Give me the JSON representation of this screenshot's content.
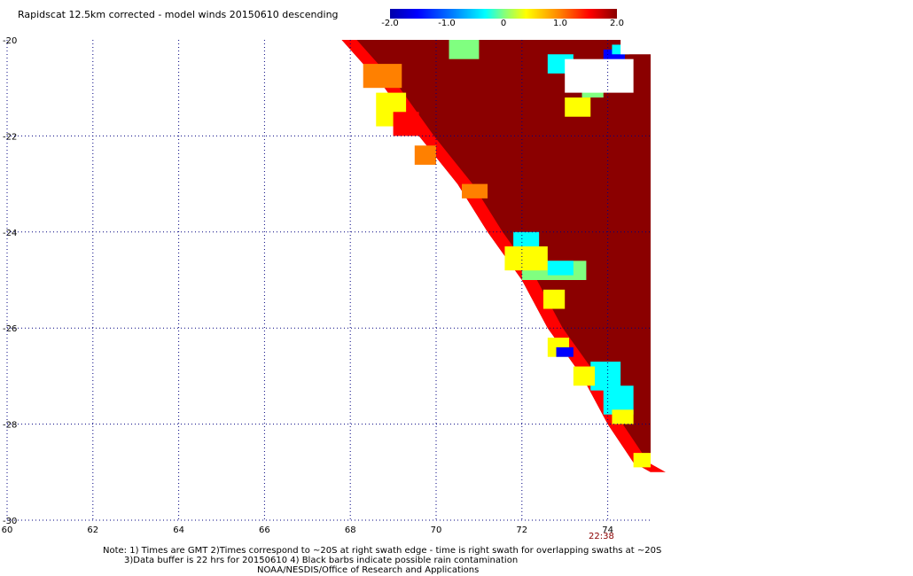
{
  "title": "Rapidscat 12.5km corrected - model winds 20150610 descending",
  "colorbar": {
    "ticks": [
      "-2.0",
      "-1.0",
      "0",
      "1.0",
      "2.0"
    ]
  },
  "time_label": "22:38",
  "notes": {
    "line1": "Note: 1) Times are GMT 2)Times correspond to ~20S at right swath edge - time is right swath for overlapping swaths at ~20S",
    "line2": "3)Data buffer is 22 hrs for 20150610 4) Black barbs indicate possible rain contamination",
    "line3": "NOAA/NESDIS/Office of Research and Applications"
  },
  "colors": {
    "darkred": "#8b0000",
    "red": "#ff0000",
    "orange": "#ff8000",
    "yellow": "#ffff00",
    "lightgreen": "#80ff80",
    "cyan": "#00ffff",
    "blue": "#0000ff"
  },
  "chart_data": {
    "type": "heatmap",
    "xlim": [
      60,
      75
    ],
    "ylim": [
      -30,
      -20
    ],
    "x_ticks": [
      "60",
      "62",
      "64",
      "66",
      "68",
      "70",
      "72",
      "74"
    ],
    "y_ticks": [
      "-20",
      "-22",
      "-24",
      "-26",
      "-28",
      "-30"
    ],
    "grid": true,
    "colorbar_range": [
      -2.0,
      2.0
    ],
    "swath_edge": [
      [
        67.8,
        -20
      ],
      [
        68.8,
        -21
      ],
      [
        69.6,
        -22
      ],
      [
        70.5,
        -23
      ],
      [
        71.2,
        -24
      ],
      [
        72.0,
        -25
      ],
      [
        72.6,
        -26
      ],
      [
        73.4,
        -27
      ],
      [
        74.0,
        -28
      ],
      [
        74.6,
        -28.8
      ],
      [
        75,
        -29
      ]
    ],
    "patches": [
      {
        "x": [
          68.3,
          69.2
        ],
        "y": [
          -21.0,
          -20.5
        ],
        "level": "orange"
      },
      {
        "x": [
          68.6,
          69.3
        ],
        "y": [
          -21.8,
          -21.1
        ],
        "level": "yellow"
      },
      {
        "x": [
          69.0,
          69.6
        ],
        "y": [
          -22.0,
          -21.5
        ],
        "level": "red"
      },
      {
        "x": [
          70.3,
          71.0
        ],
        "y": [
          -20.4,
          -20.0
        ],
        "level": "lightgreen"
      },
      {
        "x": [
          71.8,
          72.4
        ],
        "y": [
          -24.4,
          -24.0
        ],
        "level": "cyan"
      },
      {
        "x": [
          72.0,
          73.5
        ],
        "y": [
          -25.0,
          -24.6
        ],
        "level": "lightgreen"
      },
      {
        "x": [
          71.6,
          72.6
        ],
        "y": [
          -24.8,
          -24.3
        ],
        "level": "yellow"
      },
      {
        "x": [
          72.6,
          73.2
        ],
        "y": [
          -24.9,
          -24.6
        ],
        "level": "cyan"
      },
      {
        "x": [
          72.6,
          73.1
        ],
        "y": [
          -26.6,
          -26.2
        ],
        "level": "yellow"
      },
      {
        "x": [
          72.8,
          73.2
        ],
        "y": [
          -26.6,
          -26.4
        ],
        "level": "blue"
      },
      {
        "x": [
          73.6,
          74.3
        ],
        "y": [
          -27.3,
          -26.7
        ],
        "level": "cyan"
      },
      {
        "x": [
          73.9,
          74.6
        ],
        "y": [
          -27.8,
          -27.2
        ],
        "level": "cyan"
      },
      {
        "x": [
          73.2,
          73.7
        ],
        "y": [
          -27.2,
          -26.8
        ],
        "level": "yellow"
      },
      {
        "x": [
          74.1,
          74.6
        ],
        "y": [
          -28.0,
          -27.7
        ],
        "level": "yellow"
      },
      {
        "x": [
          74.6,
          75.0
        ],
        "y": [
          -28.9,
          -28.6
        ],
        "level": "yellow"
      },
      {
        "x": [
          73.9,
          74.4
        ],
        "y": [
          -20.6,
          -20.2
        ],
        "level": "blue"
      },
      {
        "x": [
          74.1,
          74.5
        ],
        "y": [
          -20.3,
          -20.1
        ],
        "level": "cyan"
      },
      {
        "x": [
          72.6,
          73.2
        ],
        "y": [
          -20.7,
          -20.3
        ],
        "level": "cyan"
      },
      {
        "x": [
          73.4,
          73.9
        ],
        "y": [
          -21.2,
          -20.8
        ],
        "level": "lightgreen"
      },
      {
        "x": [
          73.0,
          73.6
        ],
        "y": [
          -21.6,
          -21.2
        ],
        "level": "yellow"
      },
      {
        "x": [
          72.5,
          73.0
        ],
        "y": [
          -25.6,
          -25.2
        ],
        "level": "yellow"
      },
      {
        "x": [
          70.6,
          71.2
        ],
        "y": [
          -23.3,
          -23.0
        ],
        "level": "orange"
      },
      {
        "x": [
          69.5,
          70.0
        ],
        "y": [
          -22.6,
          -22.2
        ],
        "level": "orange"
      }
    ],
    "gaps": [
      {
        "x": [
          73.0,
          74.6
        ],
        "y": [
          -21.1,
          -20.4
        ]
      },
      {
        "x": [
          74.3,
          75.0
        ],
        "y": [
          -20.3,
          -20.0
        ]
      }
    ]
  }
}
